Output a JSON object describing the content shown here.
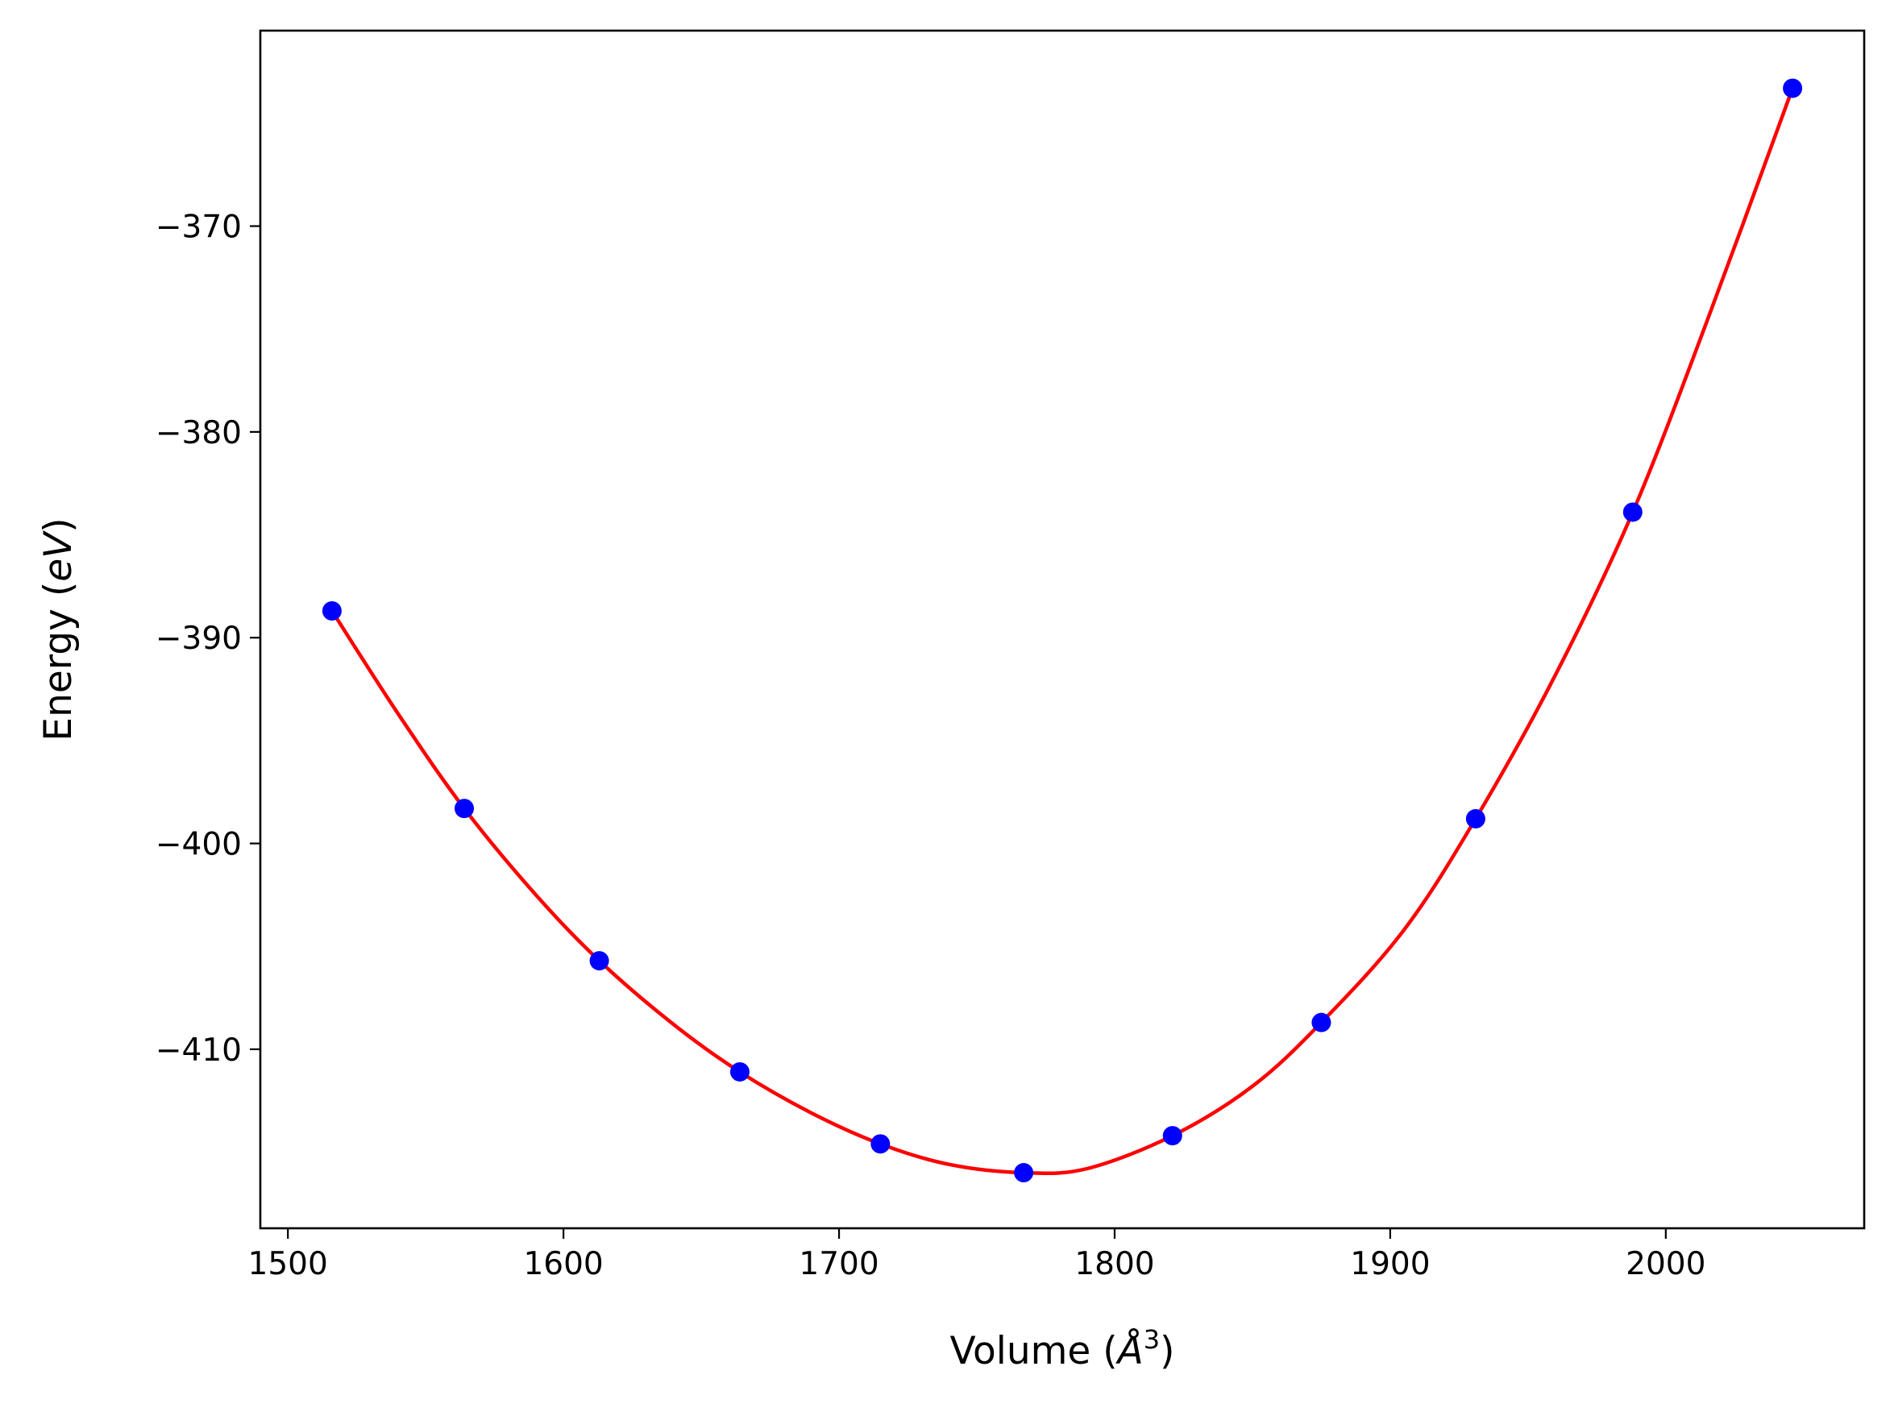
{
  "chart_data": {
    "type": "scatter",
    "title": "",
    "xlabel": {
      "prefix": "Volume (",
      "symbol": "Å",
      "power": "3",
      "suffix": ")"
    },
    "ylabel": {
      "prefix": "Energy (",
      "unit": "eV",
      "suffix": ")"
    },
    "xlim": [
      1490,
      2072
    ],
    "ylim": [
      -418.7,
      -360.5
    ],
    "xticks": [
      1500,
      1600,
      1700,
      1800,
      1900,
      2000
    ],
    "xtick_labels": [
      "1500",
      "1600",
      "1700",
      "1800",
      "1900",
      "2000"
    ],
    "yticks": [
      -370,
      -380,
      -390,
      -400,
      -410
    ],
    "ytick_labels": [
      "−370",
      "−380",
      "−390",
      "−400",
      "−410"
    ],
    "grid": false,
    "series": [
      {
        "kind": "points",
        "color": "#0000ff",
        "x": [
          1516,
          1564,
          1613,
          1664,
          1715,
          1767,
          1821,
          1875,
          1931,
          1988,
          2046
        ],
        "y": [
          -388.7,
          -398.3,
          -405.7,
          -411.1,
          -414.6,
          -416.0,
          -414.2,
          -408.7,
          -398.8,
          -383.9,
          -363.3
        ]
      },
      {
        "kind": "fit",
        "color": "#ff0000",
        "x": [
          1516,
          1540,
          1564,
          1590,
          1613,
          1640,
          1664,
          1690,
          1715,
          1740,
          1767,
          1790,
          1821,
          1850,
          1875,
          1905,
          1931,
          1960,
          1988,
          2015,
          2046
        ],
        "y": [
          -388.7,
          -393.7,
          -398.3,
          -402.5,
          -405.7,
          -408.8,
          -411.1,
          -413.1,
          -414.6,
          -415.6,
          -416.0,
          -415.8,
          -414.2,
          -411.8,
          -408.7,
          -404.2,
          -398.8,
          -391.8,
          -383.9,
          -374.6,
          -363.3
        ]
      }
    ]
  }
}
